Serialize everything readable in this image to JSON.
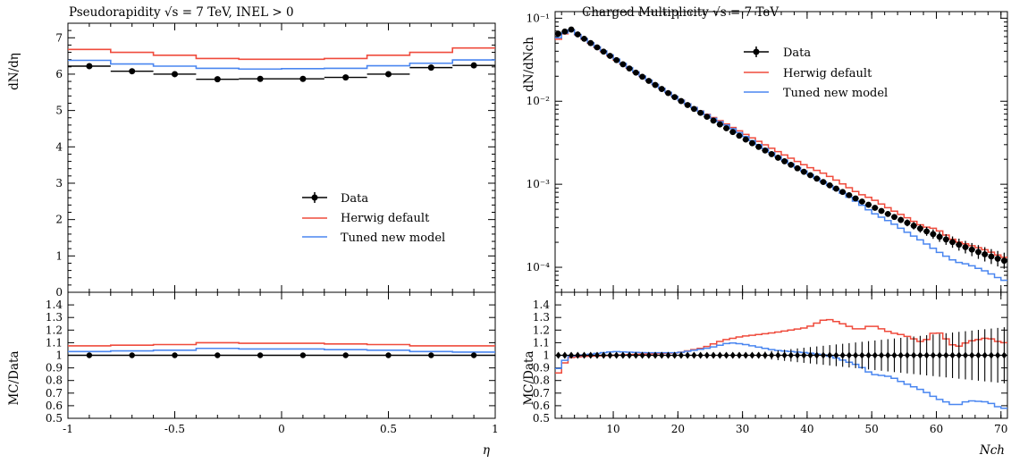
{
  "chart_data": [
    {
      "type": "line",
      "title": "Pseudorapidity √s = 7 TeV, INEL > 0",
      "ylabel": "dN/dη",
      "xlabel": "η",
      "ratio_ylabel": "MC/Data",
      "xlim": [
        -1,
        1
      ],
      "ylim": [
        0,
        7.4
      ],
      "ratio_ylim": [
        0.5,
        1.5
      ],
      "yticks": [
        "0",
        "1",
        "2",
        "3",
        "4",
        "5",
        "6",
        "7"
      ],
      "xticks": [
        "-1",
        "-0.5",
        "0",
        "0.5",
        "1"
      ],
      "ratio_yticks": [
        "0.5",
        "0.6",
        "0.7",
        "0.8",
        "0.9",
        "1",
        "1.1",
        "1.2",
        "1.3",
        "1.4"
      ],
      "bin_edges": [
        -1,
        -0.8,
        -0.6,
        -0.4,
        -0.2,
        0,
        0.2,
        0.4,
        0.6,
        0.8,
        1.0
      ],
      "legend": [
        "Data",
        "Herwig default",
        "Tuned new model"
      ],
      "legend_position": "center-right",
      "series": [
        {
          "name": "Data",
          "color": "#000000",
          "values": [
            6.22,
            6.08,
            6.0,
            5.86,
            5.87,
            5.87,
            5.91,
            6.0,
            6.18,
            6.24
          ]
        },
        {
          "name": "Herwig default",
          "color": "#ef4b3c",
          "values": [
            6.68,
            6.6,
            6.52,
            6.43,
            6.41,
            6.41,
            6.43,
            6.52,
            6.6,
            6.72
          ]
        },
        {
          "name": "Tuned new model",
          "color": "#4a86f0",
          "values": [
            6.38,
            6.28,
            6.22,
            6.16,
            6.14,
            6.15,
            6.16,
            6.23,
            6.3,
            6.39
          ]
        }
      ],
      "ratio_series": [
        {
          "name": "Herwig default",
          "color": "#ef4b3c",
          "values": [
            1.075,
            1.08,
            1.085,
            1.1,
            1.095,
            1.095,
            1.09,
            1.085,
            1.075,
            1.075
          ]
        },
        {
          "name": "Tuned new model",
          "color": "#4a86f0",
          "values": [
            1.03,
            1.035,
            1.04,
            1.055,
            1.05,
            1.05,
            1.045,
            1.04,
            1.03,
            1.025
          ]
        }
      ]
    },
    {
      "type": "line",
      "title": "Charged Multiplicity √s = 7 TeV",
      "ylabel": "dN/dNch",
      "xlabel": "Nch",
      "ratio_ylabel": "MC/Data",
      "xlim": [
        1,
        71
      ],
      "ylim": [
        5e-05,
        0.12
      ],
      "log_y": true,
      "ratio_ylim": [
        0.5,
        1.5
      ],
      "xticks": [
        "10",
        "20",
        "30",
        "40",
        "50",
        "60",
        "70"
      ],
      "yticks": [
        "10⁻⁴",
        "10⁻³",
        "10⁻²",
        "10⁻¹"
      ],
      "ratio_yticks": [
        "0.5",
        "0.6",
        "0.7",
        "0.8",
        "0.9",
        "1",
        "1.1",
        "1.2",
        "1.3",
        "1.4"
      ],
      "legend": [
        "Data",
        "Herwig default",
        "Tuned new model"
      ],
      "legend_position": "top-right",
      "bins": [
        {
          "start": 1,
          "end": 71,
          "step": 1
        }
      ],
      "series": [
        {
          "name": "Data",
          "color": "#000000",
          "values": "computed: exponential-like decay from 0.065 at Nch=1 to 0.00012 at Nch=70"
        },
        {
          "name": "Herwig default",
          "color": "#ef4b3c",
          "values": "Data × ratio_series[0]"
        },
        {
          "name": "Tuned new model",
          "color": "#4a86f0",
          "values": "Data × ratio_series[1]"
        }
      ],
      "ratio_series": [
        {
          "name": "Herwig default",
          "color": "#ef4b3c",
          "knots_x": [
            1,
            2,
            3,
            5,
            10,
            15,
            20,
            24,
            27,
            30,
            35,
            40,
            43,
            45,
            48,
            50,
            53,
            55,
            58,
            60,
            63,
            65,
            68,
            70
          ],
          "knots_y": [
            0.82,
            0.9,
            0.98,
            0.99,
            1.0,
            1.01,
            1.02,
            1.06,
            1.12,
            1.15,
            1.18,
            1.22,
            1.29,
            1.26,
            1.2,
            1.24,
            1.18,
            1.16,
            1.1,
            1.2,
            1.06,
            1.11,
            1.14,
            1.1
          ]
        },
        {
          "name": "Tuned new model",
          "color": "#4a86f0",
          "knots_x": [
            1,
            2,
            3,
            5,
            10,
            15,
            20,
            25,
            28,
            30,
            35,
            40,
            43,
            45,
            48,
            50,
            53,
            55,
            58,
            60,
            63,
            65,
            68,
            70
          ],
          "knots_y": [
            0.86,
            0.93,
            0.99,
            1.0,
            1.03,
            1.02,
            1.02,
            1.06,
            1.1,
            1.09,
            1.04,
            1.02,
            1.0,
            0.97,
            0.92,
            0.85,
            0.83,
            0.78,
            0.72,
            0.66,
            0.6,
            0.64,
            0.63,
            0.58
          ]
        }
      ],
      "data_ratio_error": {
        "start_x": 30,
        "start_err": 0.01,
        "end_x": 70,
        "end_err": 0.22
      }
    }
  ]
}
